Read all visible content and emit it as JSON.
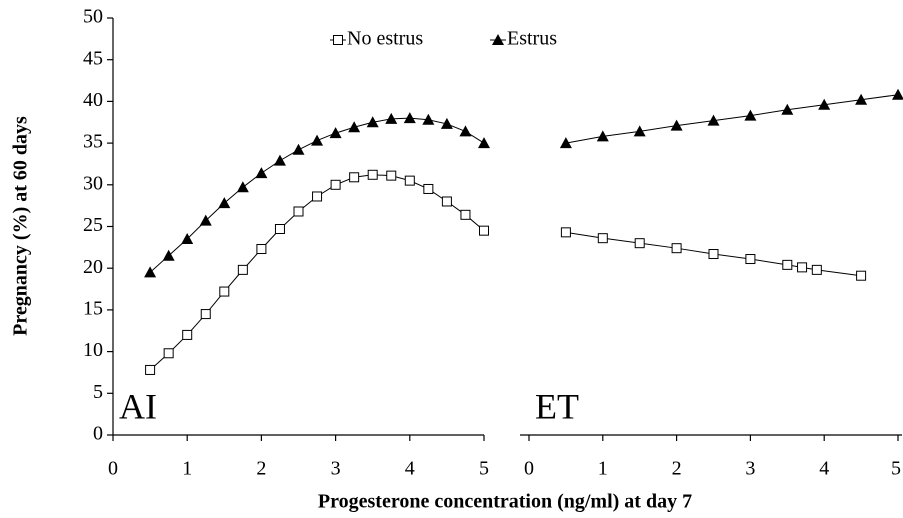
{
  "chart_data": [
    {
      "type": "scatter",
      "annotation": "AI",
      "y_label": "Pregnancy (%) at 60 days",
      "x_label": "Progesterone concentration (ng/ml) at day 7",
      "xlim": [
        0,
        5
      ],
      "xticks": [
        0,
        1,
        2,
        3,
        4,
        5
      ],
      "ylim": [
        0,
        50
      ],
      "yticks": [
        0,
        5,
        10,
        15,
        20,
        25,
        30,
        35,
        40,
        45,
        50
      ],
      "series": [
        {
          "name": "No estrus",
          "color": "#000000",
          "marker": "square",
          "x": [
            0.5,
            0.75,
            1,
            1.25,
            1.5,
            1.75,
            2,
            2.25,
            2.5,
            2.75,
            3,
            3.25,
            3.5,
            3.75,
            4,
            4.25,
            4.5,
            4.75,
            5
          ],
          "values": [
            7.8,
            9.8,
            12,
            14.5,
            17.2,
            19.8,
            22.3,
            24.7,
            26.8,
            28.6,
            30,
            30.9,
            31.2,
            31.1,
            30.5,
            29.5,
            28,
            26.4,
            24.5
          ]
        },
        {
          "name": "Estrus",
          "color": "#000000",
          "marker": "triangle",
          "x": [
            0.5,
            0.75,
            1,
            1.25,
            1.5,
            1.75,
            2,
            2.25,
            2.5,
            2.75,
            3,
            3.25,
            3.5,
            3.75,
            4,
            4.25,
            4.5,
            4.75,
            5
          ],
          "values": [
            19.5,
            21.5,
            23.5,
            25.7,
            27.8,
            29.7,
            31.4,
            32.9,
            34.2,
            35.3,
            36.2,
            36.9,
            37.5,
            37.9,
            38,
            37.8,
            37.3,
            36.4,
            35
          ]
        }
      ]
    },
    {
      "type": "scatter",
      "annotation": "ET",
      "xlim": [
        0,
        5
      ],
      "xticks": [
        0,
        1,
        2,
        3,
        4,
        5
      ],
      "ylim": [
        0,
        50
      ],
      "series": [
        {
          "color": "#000000",
          "marker": "square",
          "x": [
            0.5,
            1,
            1.5,
            2,
            2.5,
            3,
            3.5,
            3.7,
            3.9,
            4.5
          ],
          "values": [
            24.3,
            23.6,
            23,
            22.4,
            21.7,
            21.1,
            20.4,
            20.1,
            19.8,
            19.1
          ]
        },
        {
          "color": "#000000",
          "marker": "triangle",
          "x": [
            0.5,
            1,
            1.5,
            2,
            2.5,
            3,
            3.5,
            4,
            4.5,
            5
          ],
          "values": [
            35,
            35.8,
            36.4,
            37.1,
            37.7,
            38.3,
            39,
            39.6,
            40.2,
            40.8
          ]
        }
      ]
    }
  ]
}
